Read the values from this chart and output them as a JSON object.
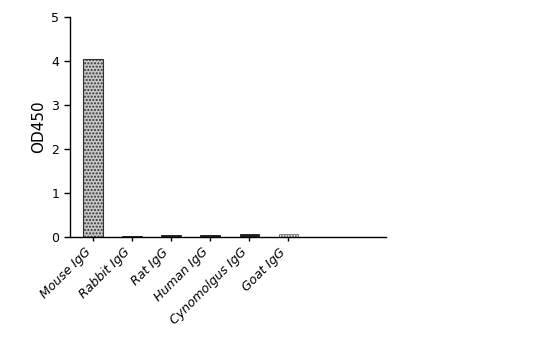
{
  "categories": [
    "Mouse IgG",
    "Rabbit IgG",
    "Rat IgG",
    "Human IgG",
    "Cynomolgus IgG",
    "Goat IgG"
  ],
  "values": [
    4.05,
    0.02,
    0.04,
    0.03,
    0.05,
    0.07
  ],
  "ylabel": "OD450",
  "ylim": [
    0,
    5
  ],
  "yticks": [
    0,
    1,
    2,
    3,
    4,
    5
  ],
  "bar_width": 0.5,
  "background_color": "#ffffff",
  "ylabel_fontsize": 11,
  "tick_fontsize": 9,
  "label_fontsize": 9
}
